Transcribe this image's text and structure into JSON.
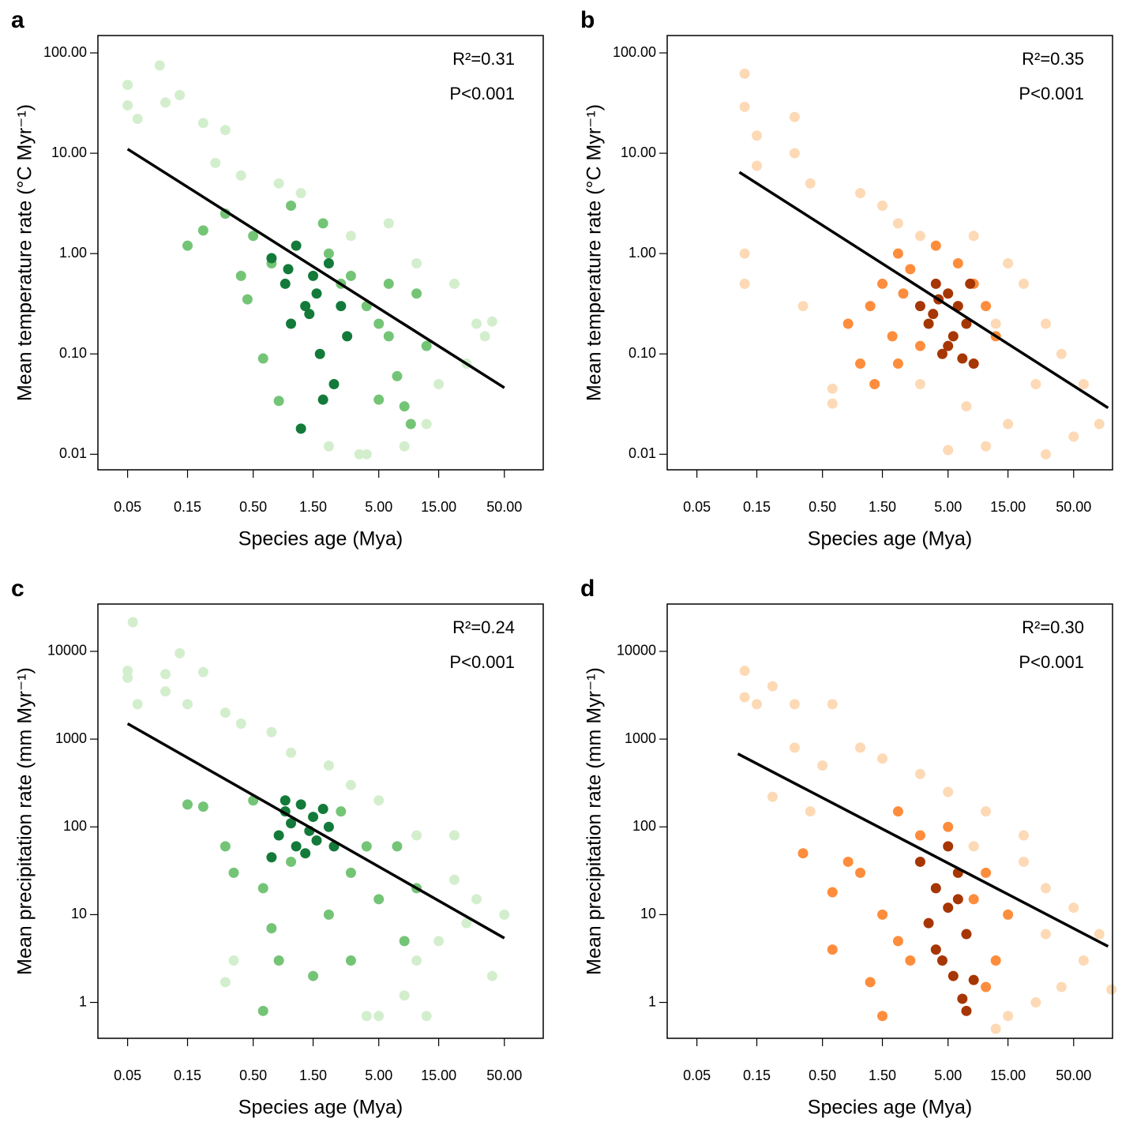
{
  "chart_data": [
    {
      "type": "scatter",
      "panel": "a",
      "xlabel": "Species age (Mya)",
      "ylabel": "Mean temperature rate (°C Myr⁻¹)",
      "annotations": [
        "R²=0.31",
        "P<0.001"
      ],
      "log_x": true,
      "log_y": true,
      "xlim": [
        0.029,
        102
      ],
      "ylim": [
        0.007,
        149
      ],
      "xticks": [
        0.05,
        0.15,
        {
          "value": 0.5,
          "label": "0.50"
        },
        {
          "value": 1.5,
          "label": "1.50"
        },
        {
          "value": 5,
          "label": "5.00"
        },
        {
          "value": 15,
          "label": "15.00"
        },
        {
          "value": 50,
          "label": "50.00"
        }
      ],
      "yticks": [
        0.01,
        {
          "value": 0.1,
          "label": "0.10"
        },
        {
          "value": 1,
          "label": "1.00"
        },
        {
          "value": 10,
          "label": "10.00"
        },
        {
          "value": 100,
          "label": "100.00"
        }
      ],
      "series": [
        {
          "color": "#d3eecd",
          "x": [
            0.05,
            0.05,
            0.09,
            0.06,
            0.13,
            0.1,
            0.2,
            0.3,
            0.25,
            0.4,
            0.8,
            1.2,
            3,
            6,
            10,
            20,
            30,
            40,
            25,
            15,
            8,
            4,
            2,
            12,
            35,
            3.5
          ],
          "y": [
            48,
            30,
            75,
            22,
            38,
            32,
            20,
            17,
            8,
            6,
            5,
            4,
            1.5,
            2,
            0.8,
            0.5,
            0.2,
            0.21,
            0.08,
            0.05,
            0.012,
            0.01,
            0.012,
            0.02,
            0.15,
            0.01
          ]
        },
        {
          "color": "#74c476",
          "x": [
            0.15,
            0.2,
            0.3,
            0.4,
            0.5,
            0.6,
            0.8,
            1,
            2,
            3,
            4,
            5,
            6,
            7,
            8,
            9,
            10,
            5,
            2.5,
            0.7,
            1.8,
            12,
            6,
            0.45
          ],
          "y": [
            1.2,
            1.7,
            2.5,
            0.6,
            1.5,
            0.09,
            0.034,
            3,
            1,
            0.6,
            0.3,
            0.2,
            0.15,
            0.06,
            0.03,
            0.02,
            0.4,
            0.035,
            0.5,
            0.8,
            2,
            0.12,
            0.5,
            0.35
          ]
        },
        {
          "color": "#137a3a",
          "x": [
            0.7,
            0.9,
            1,
            1.2,
            1.3,
            1.5,
            1.6,
            1.7,
            1.8,
            2,
            2.2,
            2.5,
            2.8,
            1.1,
            1.4,
            0.95
          ],
          "y": [
            0.9,
            0.5,
            0.2,
            0.018,
            0.3,
            0.6,
            0.4,
            0.1,
            0.035,
            0.8,
            0.05,
            0.3,
            0.15,
            1.2,
            0.25,
            0.7
          ]
        }
      ],
      "fit": {
        "color": "#000000",
        "x": [
          0.05,
          50
        ],
        "y": [
          11,
          0.046
        ]
      }
    },
    {
      "type": "scatter",
      "panel": "b",
      "xlabel": "Species age (Mya)",
      "ylabel": "Mean temperature rate (°C Myr⁻¹)",
      "annotations": [
        "R²=0.35",
        "P<0.001"
      ],
      "log_x": true,
      "log_y": true,
      "xlim": [
        0.029,
        102
      ],
      "ylim": [
        0.007,
        149
      ],
      "xticks": [
        0.05,
        0.15,
        {
          "value": 0.5,
          "label": "0.50"
        },
        {
          "value": 1.5,
          "label": "1.50"
        },
        {
          "value": 5,
          "label": "5.00"
        },
        {
          "value": 15,
          "label": "15.00"
        },
        {
          "value": 50,
          "label": "50.00"
        }
      ],
      "yticks": [
        0.01,
        {
          "value": 0.1,
          "label": "0.10"
        },
        {
          "value": 1,
          "label": "1.00"
        },
        {
          "value": 10,
          "label": "10.00"
        },
        {
          "value": 100,
          "label": "100.00"
        }
      ],
      "series": [
        {
          "color": "#fdd9b5",
          "x": [
            0.12,
            0.12,
            0.15,
            0.15,
            0.12,
            0.12,
            0.3,
            0.3,
            0.4,
            0.35,
            0.6,
            0.6,
            1,
            1.5,
            2,
            3,
            8,
            15,
            20,
            30,
            40,
            60,
            80,
            50,
            30,
            10,
            5,
            7,
            15,
            25,
            12,
            3
          ],
          "y": [
            62,
            29,
            15,
            7.5,
            1,
            0.5,
            10,
            23,
            5,
            0.3,
            0.045,
            0.032,
            4,
            3,
            2,
            1.5,
            1.5,
            0.8,
            0.5,
            0.2,
            0.1,
            0.05,
            0.02,
            0.015,
            0.01,
            0.012,
            0.011,
            0.03,
            0.02,
            0.05,
            0.2,
            0.05
          ]
        },
        {
          "color": "#fd8d3c",
          "x": [
            0.8,
            1,
            1.2,
            1.5,
            2,
            2.5,
            3,
            1.8,
            2.2,
            8,
            10,
            6,
            4,
            1.3,
            2,
            12
          ],
          "y": [
            0.2,
            0.08,
            0.3,
            0.5,
            1,
            0.7,
            0.12,
            0.15,
            0.4,
            0.5,
            0.3,
            0.8,
            1.2,
            0.05,
            0.08,
            0.15
          ]
        },
        {
          "color": "#a63603",
          "x": [
            3,
            3.5,
            4,
            4.5,
            5,
            5.5,
            6,
            6.5,
            7,
            7.5,
            3.8,
            5,
            4.2,
            8
          ],
          "y": [
            0.3,
            0.2,
            0.5,
            0.1,
            0.4,
            0.15,
            0.3,
            0.09,
            0.2,
            0.5,
            0.25,
            0.12,
            0.35,
            0.08
          ]
        }
      ],
      "fit": {
        "color": "#000000",
        "x": [
          0.109,
          94
        ],
        "y": [
          6.47,
          0.029
        ]
      }
    },
    {
      "type": "scatter",
      "panel": "c",
      "xlabel": "Species age (Mya)",
      "ylabel": "Mean precipitation rate (mm Myr⁻¹)",
      "annotations": [
        "R²=0.24",
        "P<0.001"
      ],
      "log_x": true,
      "log_y": true,
      "xlim": [
        0.029,
        102
      ],
      "ylim": [
        0.39,
        34600
      ],
      "xticks": [
        0.05,
        0.15,
        {
          "value": 0.5,
          "label": "0.50"
        },
        {
          "value": 1.5,
          "label": "1.50"
        },
        {
          "value": 5,
          "label": "5.00"
        },
        {
          "value": 15,
          "label": "15.00"
        },
        {
          "value": 50,
          "label": "50.00"
        }
      ],
      "yticks": [
        1,
        10,
        100,
        1000,
        10000
      ],
      "series": [
        {
          "color": "#d3eecd",
          "x": [
            0.055,
            0.05,
            0.05,
            0.06,
            0.13,
            0.1,
            0.1,
            0.2,
            0.15,
            0.3,
            0.4,
            0.7,
            1,
            2,
            3,
            5,
            10,
            20,
            30,
            50,
            40,
            20,
            15,
            12,
            5,
            4,
            8,
            10,
            25,
            0.35,
            0.3
          ],
          "y": [
            21500,
            6000,
            5000,
            2500,
            9500,
            5500,
            3500,
            5800,
            2500,
            2000,
            1500,
            1200,
            700,
            500,
            300,
            200,
            80,
            80,
            15,
            10,
            2,
            25,
            5,
            0.7,
            0.7,
            0.7,
            1.2,
            3,
            8,
            3,
            1.7
          ]
        },
        {
          "color": "#74c476",
          "x": [
            0.15,
            0.2,
            0.3,
            0.35,
            0.5,
            0.6,
            0.7,
            0.8,
            1,
            2,
            3,
            3,
            5,
            8,
            10,
            7,
            0.6,
            1.5,
            2.5,
            4
          ],
          "y": [
            180,
            170,
            60,
            30,
            200,
            20,
            7,
            3,
            40,
            10,
            3,
            30,
            15,
            5,
            20,
            60,
            0.8,
            2,
            150,
            60
          ]
        },
        {
          "color": "#137a3a",
          "x": [
            0.7,
            0.8,
            0.9,
            1,
            1.1,
            1.2,
            1.4,
            1.5,
            1.6,
            1.8,
            2,
            2.2,
            0.9,
            1.3
          ],
          "y": [
            45,
            80,
            150,
            110,
            60,
            180,
            90,
            130,
            70,
            160,
            100,
            60,
            200,
            50
          ]
        }
      ],
      "fit": {
        "color": "#000000",
        "x": [
          0.05,
          50
        ],
        "y": [
          1500,
          5.4
        ]
      }
    },
    {
      "type": "scatter",
      "panel": "d",
      "xlabel": "Species age (Mya)",
      "ylabel": "Mean precipitation rate (mm Myr⁻¹)",
      "annotations": [
        "R²=0.30",
        "P<0.001"
      ],
      "log_x": true,
      "log_y": true,
      "xlim": [
        0.029,
        102
      ],
      "ylim": [
        0.39,
        34600
      ],
      "xticks": [
        0.05,
        0.15,
        {
          "value": 0.5,
          "label": "0.50"
        },
        {
          "value": 1.5,
          "label": "1.50"
        },
        {
          "value": 5,
          "label": "5.00"
        },
        {
          "value": 15,
          "label": "15.00"
        },
        {
          "value": 50,
          "label": "50.00"
        }
      ],
      "yticks": [
        1,
        10,
        100,
        1000,
        10000
      ],
      "series": [
        {
          "color": "#fdd9b5",
          "x": [
            0.12,
            0.12,
            0.15,
            0.2,
            0.2,
            0.3,
            0.3,
            0.4,
            0.6,
            0.5,
            1,
            1.5,
            3,
            5,
            10,
            20,
            30,
            50,
            80,
            100,
            60,
            40,
            25,
            15,
            12,
            30,
            20,
            8
          ],
          "y": [
            6000,
            3000,
            2500,
            4000,
            220,
            2500,
            800,
            150,
            2500,
            500,
            800,
            600,
            400,
            250,
            150,
            80,
            20,
            12,
            6,
            1.4,
            3,
            1.5,
            1,
            0.7,
            0.5,
            6,
            40,
            60
          ]
        },
        {
          "color": "#fd8d3c",
          "x": [
            0.35,
            0.6,
            0.6,
            0.8,
            1,
            1.2,
            1.5,
            1.5,
            2,
            2.5,
            3,
            10,
            15,
            12,
            8,
            5,
            2,
            10
          ],
          "y": [
            50,
            18,
            4,
            40,
            30,
            1.7,
            0.7,
            10,
            5,
            3,
            80,
            30,
            10,
            3,
            15,
            100,
            150,
            1.5
          ]
        },
        {
          "color": "#a63603",
          "x": [
            3,
            3.5,
            4,
            4.5,
            5,
            5,
            5.5,
            6,
            6.5,
            7,
            7,
            8,
            4,
            6
          ],
          "y": [
            40,
            8,
            20,
            3,
            60,
            12,
            2,
            30,
            1.1,
            0.8,
            6,
            1.8,
            4,
            15
          ]
        }
      ],
      "fit": {
        "color": "#000000",
        "x": [
          0.106,
          94
        ],
        "y": [
          680,
          4.35
        ]
      }
    }
  ]
}
